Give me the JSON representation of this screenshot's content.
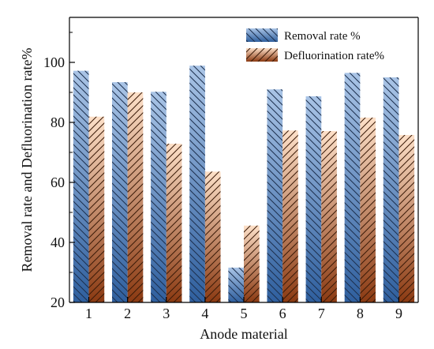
{
  "chart_data": {
    "type": "bar",
    "xlabel": "Anode material",
    "ylabel": "Removal rate and Defluorination rate%",
    "categories": [
      "1",
      "2",
      "3",
      "4",
      "5",
      "6",
      "7",
      "8",
      "9"
    ],
    "ylim": [
      20,
      115
    ],
    "yticks": [
      20,
      40,
      60,
      80,
      100
    ],
    "grid": false,
    "legend_position": "top-right",
    "series": [
      {
        "name": "Removal rate %",
        "values": [
          97.2,
          93.4,
          90.2,
          98.9,
          31.6,
          91.0,
          88.7,
          96.5,
          95.0
        ],
        "color_top": "#a9c4e6",
        "color_bottom": "#2f5f9e",
        "hatch": "diagonal-down"
      },
      {
        "name": "Defluorination rate%",
        "values": [
          81.9,
          90.0,
          72.9,
          63.6,
          45.6,
          77.3,
          77.1,
          81.6,
          75.8
        ],
        "color_top": "#fde0c8",
        "color_bottom": "#8b3a12",
        "hatch": "diagonal-up"
      }
    ]
  }
}
